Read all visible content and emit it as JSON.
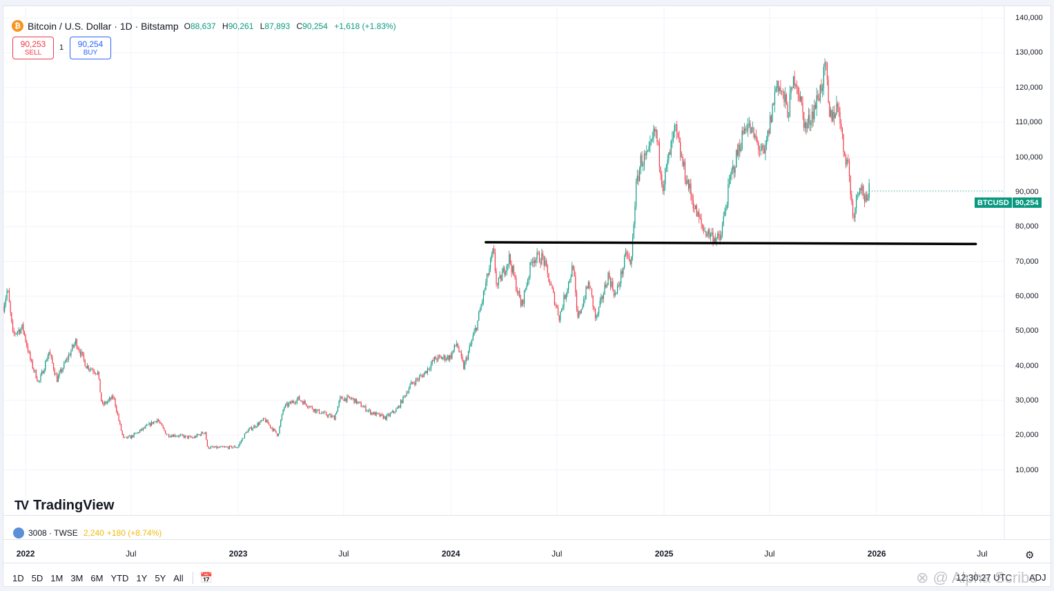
{
  "header": {
    "coin_glyph": "₿",
    "symbol_text": "Bitcoin / U.S. Dollar · 1D · Bitstamp",
    "open_label": "O",
    "open_value": "88,637",
    "high_label": "H",
    "high_value": "90,261",
    "low_label": "L",
    "low_value": "87,893",
    "close_label": "C",
    "close_value": "90,254",
    "change": "+1,618 (+1.83%)"
  },
  "trade": {
    "sell_price": "90,253",
    "sell_label": "SELL",
    "spread": "1",
    "buy_price": "90,254",
    "buy_label": "BUY"
  },
  "last_price": {
    "symbol": "BTCUSD",
    "value": "90,254"
  },
  "logo": {
    "mark": "TV",
    "text": "TradingView"
  },
  "secondary_ticker": {
    "symbol": "3008 · TWSE",
    "price": "2,240",
    "change": "+180 (+8.74%)"
  },
  "timeframes": [
    "1D",
    "5D",
    "1M",
    "3M",
    "6M",
    "YTD",
    "1Y",
    "5Y",
    "All"
  ],
  "footer": {
    "time": "12:30:27 UTC",
    "adj": "ADJ",
    "watermark": "⊗ @ Alpha Scribe"
  },
  "colors": {
    "up": "#089981",
    "down": "#f23645",
    "grid": "#f0f3fa",
    "support_line": "#000000"
  },
  "chart_data": {
    "type": "candlestick",
    "title": "Bitcoin / U.S. Dollar · 1D · Bitstamp",
    "y_ticks": [
      10000,
      20000,
      30000,
      40000,
      50000,
      60000,
      70000,
      80000,
      90000,
      100000,
      110000,
      120000,
      130000,
      140000
    ],
    "y_tick_labels": [
      "10,000",
      "20,000",
      "30,000",
      "40,000",
      "50,000",
      "60,000",
      "70,000",
      "80,000",
      "90,000",
      "100,000",
      "110,000",
      "120,000",
      "130,000",
      "140,000"
    ],
    "ylim": [
      0,
      143000
    ],
    "xlim": [
      "2021-11-24",
      "2026-08-08"
    ],
    "x_ticks": [
      {
        "date": "2022-01-01",
        "label": "2022",
        "year": true
      },
      {
        "date": "2022-07-01",
        "label": "Jul",
        "year": false
      },
      {
        "date": "2023-01-01",
        "label": "2023",
        "year": true
      },
      {
        "date": "2023-07-01",
        "label": "Jul",
        "year": false
      },
      {
        "date": "2024-01-01",
        "label": "2024",
        "year": true
      },
      {
        "date": "2024-07-01",
        "label": "Jul",
        "year": false
      },
      {
        "date": "2025-01-01",
        "label": "2025",
        "year": true
      },
      {
        "date": "2025-07-01",
        "label": "Jul",
        "year": false
      },
      {
        "date": "2026-01-01",
        "label": "2026",
        "year": true
      },
      {
        "date": "2026-07-01",
        "label": "Jul",
        "year": false
      }
    ],
    "grid": true,
    "price_path": [
      [
        "2021-11-24",
        57000
      ],
      [
        "2021-12-01",
        62000
      ],
      [
        "2021-12-10",
        49000
      ],
      [
        "2021-12-27",
        51000
      ],
      [
        "2022-01-10",
        41000
      ],
      [
        "2022-01-24",
        35000
      ],
      [
        "2022-02-10",
        44000
      ],
      [
        "2022-02-24",
        36000
      ],
      [
        "2022-03-28",
        47000
      ],
      [
        "2022-04-15",
        40000
      ],
      [
        "2022-05-05",
        38000
      ],
      [
        "2022-05-12",
        28500
      ],
      [
        "2022-06-01",
        31000
      ],
      [
        "2022-06-13",
        22000
      ],
      [
        "2022-06-18",
        19000
      ],
      [
        "2022-07-01",
        19500
      ],
      [
        "2022-08-15",
        24500
      ],
      [
        "2022-09-01",
        20000
      ],
      [
        "2022-09-15",
        20000
      ],
      [
        "2022-10-15",
        19200
      ],
      [
        "2022-11-05",
        21000
      ],
      [
        "2022-11-09",
        16500
      ],
      [
        "2022-11-25",
        16400
      ],
      [
        "2022-12-31",
        16600
      ],
      [
        "2023-01-15",
        21000
      ],
      [
        "2023-02-15",
        24500
      ],
      [
        "2023-03-10",
        20000
      ],
      [
        "2023-03-20",
        28000
      ],
      [
        "2023-04-14",
        30500
      ],
      [
        "2023-05-15",
        27000
      ],
      [
        "2023-06-15",
        25000
      ],
      [
        "2023-06-25",
        30500
      ],
      [
        "2023-07-15",
        30500
      ],
      [
        "2023-08-17",
        26500
      ],
      [
        "2023-09-11",
        25000
      ],
      [
        "2023-10-01",
        27500
      ],
      [
        "2023-10-24",
        34500
      ],
      [
        "2023-11-15",
        37500
      ],
      [
        "2023-12-05",
        42000
      ],
      [
        "2023-12-31",
        42500
      ],
      [
        "2024-01-11",
        46500
      ],
      [
        "2024-01-23",
        39500
      ],
      [
        "2024-02-15",
        52000
      ],
      [
        "2024-02-28",
        62000
      ],
      [
        "2024-03-14",
        73000
      ],
      [
        "2024-03-20",
        62500
      ],
      [
        "2024-04-10",
        71000
      ],
      [
        "2024-05-01",
        57000
      ],
      [
        "2024-05-20",
        71000
      ],
      [
        "2024-06-07",
        71000
      ],
      [
        "2024-07-05",
        54000
      ],
      [
        "2024-07-29",
        69000
      ],
      [
        "2024-08-05",
        53000
      ],
      [
        "2024-08-25",
        64000
      ],
      [
        "2024-09-06",
        53000
      ],
      [
        "2024-09-27",
        66000
      ],
      [
        "2024-10-10",
        60000
      ],
      [
        "2024-10-29",
        72500
      ],
      [
        "2024-11-05",
        68000
      ],
      [
        "2024-11-13",
        90000
      ],
      [
        "2024-11-22",
        99000
      ],
      [
        "2024-12-05",
        100000
      ],
      [
        "2024-12-17",
        108000
      ],
      [
        "2024-12-30",
        92000
      ],
      [
        "2025-01-20",
        108000
      ],
      [
        "2025-02-03",
        97000
      ],
      [
        "2025-02-25",
        84000
      ],
      [
        "2025-03-10",
        79000
      ],
      [
        "2025-04-07",
        76000
      ],
      [
        "2025-04-25",
        94000
      ],
      [
        "2025-05-22",
        110000
      ],
      [
        "2025-06-22",
        100000
      ],
      [
        "2025-07-14",
        122000
      ],
      [
        "2025-08-02",
        113000
      ],
      [
        "2025-08-14",
        124000
      ],
      [
        "2025-09-01",
        108000
      ],
      [
        "2025-09-20",
        116000
      ],
      [
        "2025-10-06",
        125500
      ],
      [
        "2025-10-11",
        111000
      ],
      [
        "2025-10-28",
        115000
      ],
      [
        "2025-11-04",
        103000
      ],
      [
        "2025-11-13",
        98000
      ],
      [
        "2025-11-21",
        83000
      ],
      [
        "2025-12-03",
        93000
      ],
      [
        "2025-12-15",
        86000
      ],
      [
        "2025-12-19",
        90254
      ]
    ],
    "support_line": {
      "x1": "2024-03-01",
      "y1": 75500,
      "x2": "2026-06-20",
      "y2": 75000
    }
  }
}
